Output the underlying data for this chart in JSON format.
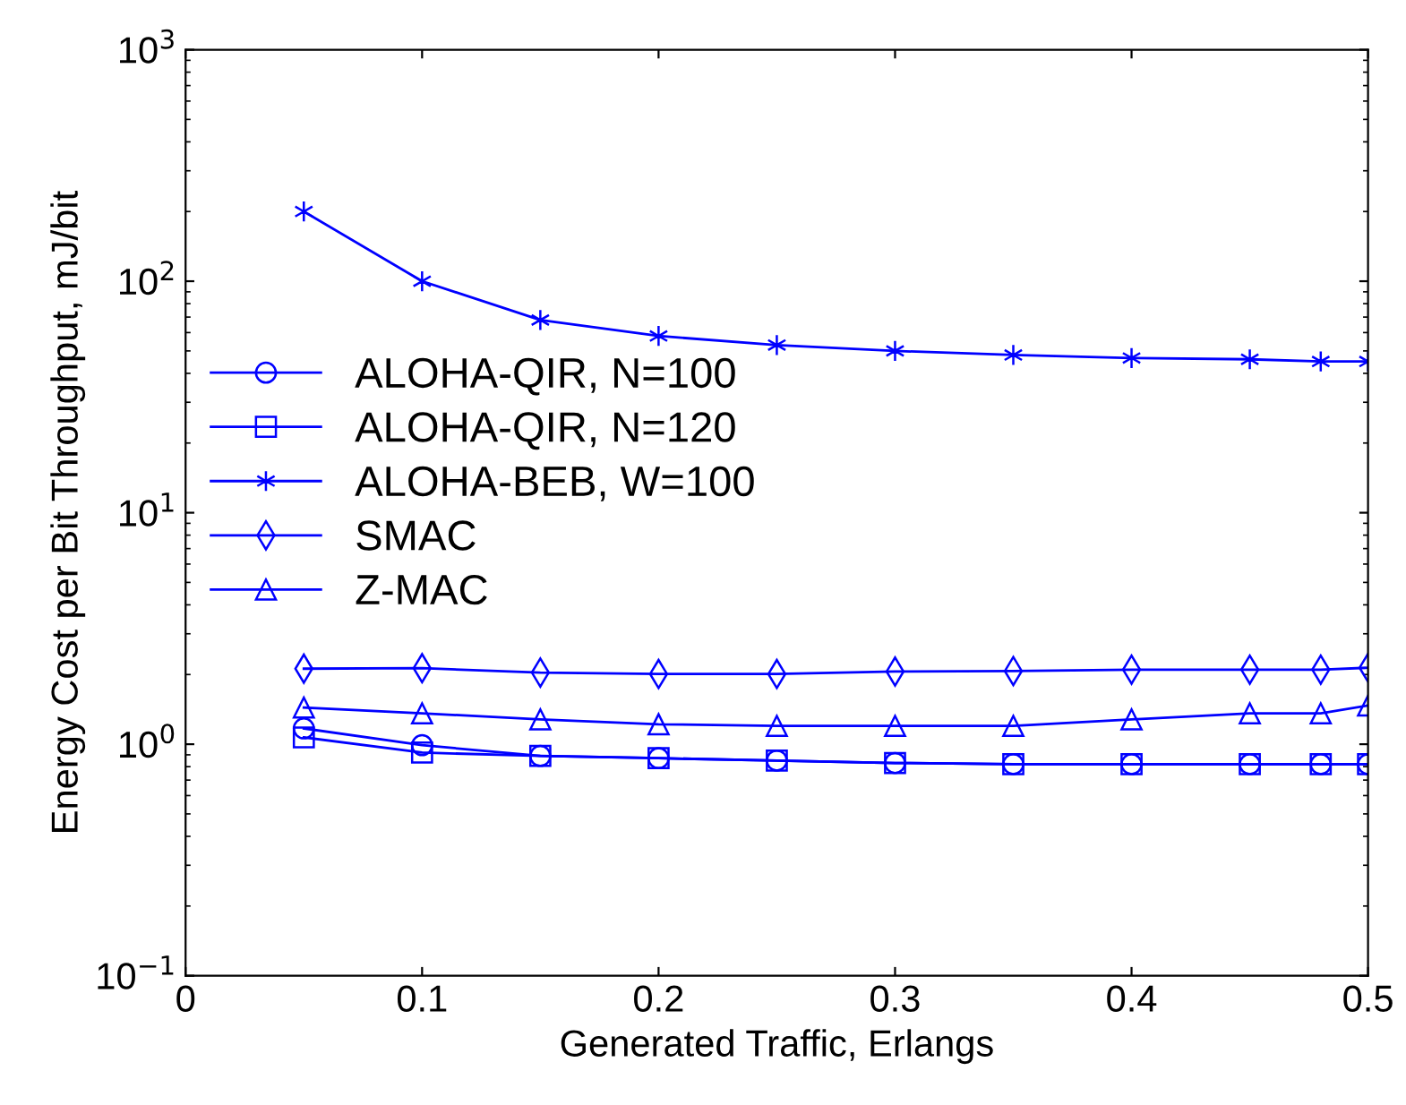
{
  "chart_data": {
    "type": "line",
    "xlabel": "Generated Traffic, Erlangs",
    "ylabel": "Energy Cost per Bit Throughput, mJ/bit",
    "x": [
      0.05,
      0.1,
      0.15,
      0.2,
      0.25,
      0.3,
      0.35,
      0.4,
      0.45,
      0.48,
      0.5
    ],
    "series": [
      {
        "name": "ALOHA-QIR, N=100",
        "color": "#0000ff",
        "marker": "circle",
        "values": [
          1.17,
          0.99,
          0.89,
          0.87,
          0.85,
          0.83,
          0.82,
          0.82,
          0.82,
          0.82,
          0.82
        ]
      },
      {
        "name": "ALOHA-QIR, N=120",
        "color": "#0000ff",
        "marker": "square",
        "values": [
          1.07,
          0.92,
          0.89,
          0.87,
          0.85,
          0.83,
          0.82,
          0.82,
          0.82,
          0.82,
          0.82
        ]
      },
      {
        "name": "ALOHA-BEB, W=100",
        "color": "#0000ff",
        "marker": "cross",
        "values": [
          200,
          100,
          68,
          58,
          53,
          50,
          48,
          46.6,
          46,
          45,
          45
        ]
      },
      {
        "name": "SMAC",
        "color": "#0000ff",
        "marker": "diamond",
        "values": [
          2.12,
          2.13,
          2.04,
          2.01,
          2.01,
          2.06,
          2.07,
          2.1,
          2.1,
          2.1,
          2.14
        ]
      },
      {
        "name": "Z-MAC",
        "color": "#0000ff",
        "marker": "triangle",
        "values": [
          1.44,
          1.36,
          1.28,
          1.22,
          1.2,
          1.2,
          1.2,
          1.28,
          1.36,
          1.36,
          1.47
        ]
      }
    ],
    "log": "y",
    "xlim": [
      0,
      0.5
    ],
    "ylim": [
      0.1,
      1000
    ],
    "xticks": [
      0,
      0.1,
      0.2,
      0.3,
      0.4,
      0.5
    ],
    "yticks": [
      {
        "value": 0.1,
        "label": "10$^{−1}$"
      },
      {
        "value": 1,
        "label": "10$^{0}$"
      },
      {
        "value": 10,
        "label": "10$^{1}$"
      },
      {
        "value": 100,
        "label": "10$^{2}$"
      },
      {
        "value": 1000,
        "label": "10$^{3}$"
      }
    ],
    "grid": false,
    "legend": "left",
    "line_style": "solid"
  }
}
